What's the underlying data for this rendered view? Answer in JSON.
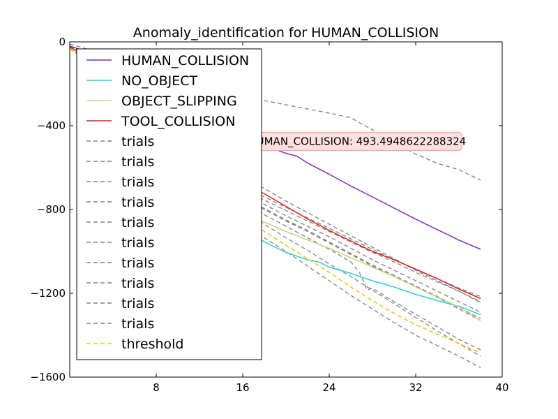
{
  "chart_data": {
    "type": "line",
    "title": "Anomaly_identification for HUMAN_COLLISION",
    "xlabel": "",
    "ylabel": "",
    "xlim": [
      0,
      40
    ],
    "ylim": [
      -1600,
      0
    ],
    "xticks": [
      8,
      16,
      24,
      32,
      40
    ],
    "xtick_labels": [
      "8",
      "16",
      "24",
      "32",
      "40"
    ],
    "yticks": [
      0,
      -400,
      -800,
      -1200,
      -1600
    ],
    "ytick_labels": [
      "0",
      "−400",
      "−800",
      "−1200",
      "−1600"
    ],
    "grid": false,
    "legend_position": "upper-left",
    "annotation": {
      "text": "HUMAN_COLLISION: 493.4948622288324",
      "x": 26.6,
      "y": -475,
      "facecolor": "#fde0df",
      "edgecolor": "#f2a8a6"
    },
    "series": [
      {
        "name": "HUMAN_COLLISION",
        "color": "#7b2fbf",
        "style": "solid",
        "x": [
          0,
          0.5,
          1,
          1.5,
          2,
          3,
          4,
          6,
          8,
          10,
          12,
          14,
          16,
          18,
          20,
          21,
          22,
          24,
          26,
          28,
          30,
          32,
          34,
          36,
          38
        ],
        "y": [
          -20,
          -28,
          -37,
          -44,
          -52,
          -66,
          -81,
          -113,
          -168,
          -225,
          -283,
          -345,
          -420,
          -495,
          -532,
          -545,
          -578,
          -632,
          -688,
          -740,
          -793,
          -846,
          -896,
          -946,
          -990
        ]
      },
      {
        "name": "NO_OBJECT",
        "color": "#2ad1d6",
        "style": "solid",
        "x": [
          0,
          1,
          2,
          4,
          6,
          8,
          10,
          12,
          14,
          16,
          18,
          20,
          22,
          23,
          24,
          26,
          28,
          30,
          32,
          34,
          36,
          38
        ],
        "y": [
          -30,
          -60,
          -95,
          -215,
          -335,
          -455,
          -570,
          -685,
          -790,
          -875,
          -955,
          -1005,
          -1040,
          -1050,
          -1075,
          -1105,
          -1140,
          -1170,
          -1205,
          -1235,
          -1262,
          -1302
        ]
      },
      {
        "name": "OBJECT_SLIPPING",
        "color": "#c9d37a",
        "style": "solid",
        "x": [
          0,
          1,
          2,
          4,
          6,
          8,
          10,
          12,
          14,
          16,
          18,
          20,
          22,
          24,
          26,
          28,
          30,
          32,
          34,
          36,
          38
        ],
        "y": [
          -30,
          -58,
          -90,
          -205,
          -320,
          -435,
          -540,
          -650,
          -740,
          -810,
          -860,
          -905,
          -945,
          -985,
          -1030,
          -1075,
          -1120,
          -1170,
          -1218,
          -1265,
          -1330
        ]
      },
      {
        "name": "TOOL_COLLISION",
        "color": "#e02020",
        "style": "solid",
        "x": [
          0,
          1,
          2,
          4,
          6,
          8,
          10,
          12,
          14,
          16,
          18,
          20,
          22,
          24,
          26,
          28,
          30,
          32,
          34,
          36,
          38
        ],
        "y": [
          -25,
          -50,
          -75,
          -175,
          -280,
          -390,
          -480,
          -560,
          -620,
          -670,
          -725,
          -785,
          -845,
          -900,
          -950,
          -1000,
          -1040,
          -1085,
          -1130,
          -1180,
          -1225
        ]
      },
      {
        "name": "trials",
        "color": "#808080",
        "style": "dashed",
        "x": [
          0,
          2,
          4,
          6,
          8,
          10,
          12,
          14,
          16,
          18,
          20,
          22,
          24,
          26,
          28,
          30,
          32,
          34,
          36,
          38
        ],
        "y": [
          -10,
          -40,
          -70,
          -100,
          -130,
          -160,
          -200,
          -235,
          -260,
          -280,
          -300,
          -320,
          -340,
          -362,
          -420,
          -480,
          -535,
          -580,
          -610,
          -660
        ]
      },
      {
        "name": "trials",
        "color": "#808080",
        "style": "dashed",
        "x": [
          0,
          2,
          4,
          6,
          8,
          10,
          12,
          14,
          16,
          18,
          20,
          22,
          24,
          26,
          28,
          30,
          32,
          34,
          36,
          38
        ],
        "y": [
          -25,
          -80,
          -180,
          -290,
          -400,
          -500,
          -580,
          -640,
          -690,
          -740,
          -790,
          -840,
          -890,
          -940,
          -990,
          -1040,
          -1085,
          -1130,
          -1175,
          -1215
        ]
      },
      {
        "name": "trials",
        "color": "#808080",
        "style": "dashed",
        "x": [
          0,
          2,
          4,
          6,
          8,
          10,
          12,
          14,
          16,
          18,
          20,
          22,
          24,
          26,
          28,
          30,
          32,
          34,
          36,
          38
        ],
        "y": [
          -25,
          -85,
          -185,
          -295,
          -405,
          -505,
          -590,
          -650,
          -705,
          -755,
          -805,
          -855,
          -905,
          -955,
          -1005,
          -1050,
          -1100,
          -1145,
          -1190,
          -1240
        ]
      },
      {
        "name": "trials",
        "color": "#808080",
        "style": "dashed",
        "x": [
          0,
          2,
          4,
          6,
          8,
          10,
          12,
          14,
          16,
          18,
          20,
          22,
          24,
          26,
          28,
          30,
          32,
          34,
          36,
          38
        ],
        "y": [
          -25,
          -90,
          -190,
          -300,
          -410,
          -515,
          -600,
          -665,
          -720,
          -775,
          -830,
          -880,
          -930,
          -985,
          -1040,
          -1090,
          -1140,
          -1190,
          -1240,
          -1290
        ]
      },
      {
        "name": "trials",
        "color": "#808080",
        "style": "dashed",
        "x": [
          0,
          2,
          4,
          6,
          8,
          10,
          12,
          14,
          16,
          18,
          20,
          22,
          24,
          26,
          28,
          30,
          32,
          34,
          36,
          38
        ],
        "y": [
          -28,
          -95,
          -200,
          -315,
          -425,
          -530,
          -620,
          -685,
          -745,
          -800,
          -855,
          -905,
          -960,
          -1015,
          -1070,
          -1120,
          -1170,
          -1220,
          -1275,
          -1330
        ]
      },
      {
        "name": "trials",
        "color": "#808080",
        "style": "dashed",
        "x": [
          0,
          2,
          4,
          6,
          8,
          10,
          12,
          14,
          16,
          18,
          20,
          22,
          24,
          26,
          26.8,
          27.5,
          28,
          30,
          32,
          34,
          36,
          38
        ],
        "y": [
          -28,
          -95,
          -205,
          -320,
          -435,
          -540,
          -630,
          -700,
          -765,
          -825,
          -880,
          -935,
          -990,
          -1050,
          -1100,
          -1185,
          -1175,
          -1240,
          -1300,
          -1360,
          -1420,
          -1470
        ]
      },
      {
        "name": "trials",
        "color": "#808080",
        "style": "dashed",
        "x": [
          0,
          2,
          4,
          6,
          8,
          10,
          12,
          14,
          16,
          18,
          20,
          22,
          24,
          26,
          28,
          30,
          32,
          34,
          36,
          38
        ],
        "y": [
          -30,
          -100,
          -210,
          -330,
          -445,
          -555,
          -650,
          -725,
          -800,
          -870,
          -935,
          -995,
          -1060,
          -1120,
          -1185,
          -1250,
          -1315,
          -1380,
          -1440,
          -1500
        ]
      },
      {
        "name": "trials",
        "color": "#808080",
        "style": "dashed",
        "x": [
          0,
          2,
          4,
          6,
          8,
          10,
          12,
          14,
          16,
          18,
          20,
          22,
          24,
          26,
          28,
          30,
          32,
          34,
          36,
          38
        ],
        "y": [
          -30,
          -105,
          -220,
          -345,
          -460,
          -575,
          -680,
          -775,
          -860,
          -935,
          -1000,
          -1070,
          -1140,
          -1210,
          -1275,
          -1340,
          -1400,
          -1450,
          -1500,
          -1555
        ]
      },
      {
        "name": "trials",
        "color": "#808080",
        "style": "dashed",
        "x": [
          0,
          2,
          4,
          6,
          8,
          10,
          12,
          14,
          16,
          18,
          20,
          22,
          24,
          26,
          28,
          30,
          32,
          34,
          36,
          38
        ],
        "y": [
          -22,
          -70,
          -150,
          -240,
          -330,
          -420,
          -510,
          -580,
          -640,
          -700,
          -760,
          -815,
          -870,
          -925,
          -980,
          -1035,
          -1090,
          -1140,
          -1190,
          -1245
        ]
      },
      {
        "name": "trials",
        "color": "#808080",
        "style": "dashed",
        "x": [
          0,
          2,
          4,
          6,
          8,
          10,
          12,
          14,
          16,
          18,
          20,
          22,
          24,
          26,
          28,
          30,
          32,
          34,
          36,
          38
        ],
        "y": [
          -26,
          -88,
          -192,
          -305,
          -418,
          -522,
          -612,
          -678,
          -738,
          -795,
          -850,
          -900,
          -955,
          -1010,
          -1065,
          -1115,
          -1165,
          -1215,
          -1268,
          -1320
        ]
      },
      {
        "name": "threshold",
        "color": "#f5c400",
        "style": "dashed",
        "x": [
          0,
          1,
          2,
          4,
          6,
          8,
          10,
          12,
          14,
          16,
          18,
          20,
          22,
          24,
          26,
          28,
          30,
          32,
          34,
          36,
          38
        ],
        "y": [
          -35,
          -70,
          -120,
          -240,
          -360,
          -480,
          -585,
          -680,
          -760,
          -835,
          -905,
          -970,
          -1035,
          -1100,
          -1170,
          -1235,
          -1295,
          -1350,
          -1395,
          -1440,
          -1485
        ]
      }
    ]
  }
}
